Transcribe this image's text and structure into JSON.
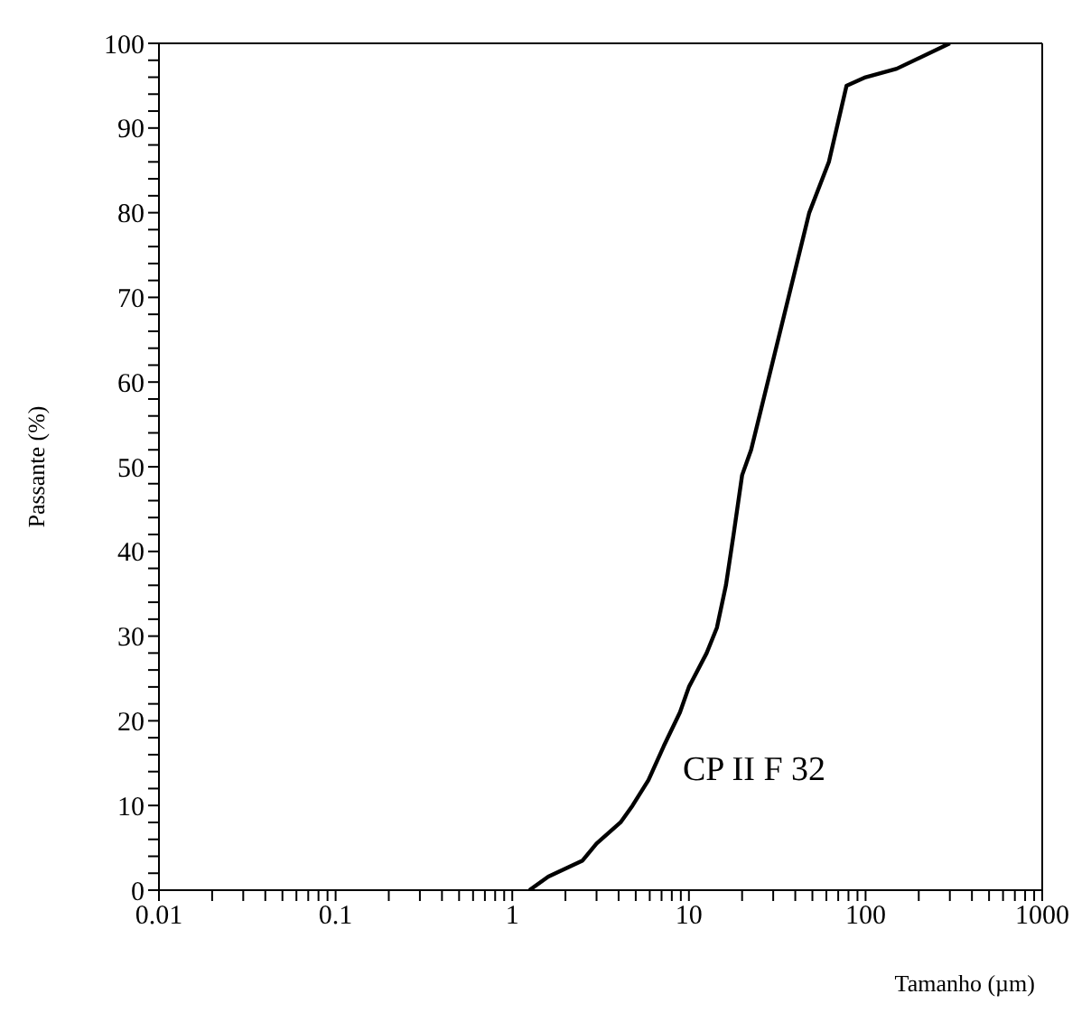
{
  "chart_data": {
    "type": "line",
    "xlabel": "Tamanho (µm)",
    "ylabel": "Passante (%)",
    "annotations": [
      "CP II F 32"
    ],
    "log": "x",
    "marker": "none",
    "line_style": "solid",
    "xlim": [
      0.01,
      1000
    ],
    "ylim": [
      0,
      100
    ],
    "xticks": [
      0.01,
      {
        "value": 0.02,
        "label": null
      },
      {
        "value": 0.03,
        "label": null
      },
      {
        "value": 0.04,
        "label": null
      },
      {
        "value": 0.05,
        "label": null
      },
      {
        "value": 0.06,
        "label": null
      },
      {
        "value": 0.07,
        "label": null
      },
      {
        "value": 0.08,
        "label": null
      },
      {
        "value": 0.09,
        "label": null
      },
      0.1,
      {
        "value": 0.2,
        "label": null
      },
      {
        "value": 0.3,
        "label": null
      },
      {
        "value": 0.4,
        "label": null
      },
      {
        "value": 0.5,
        "label": null
      },
      {
        "value": 0.6,
        "label": null
      },
      {
        "value": 0.7,
        "label": null
      },
      {
        "value": 0.8,
        "label": null
      },
      {
        "value": 0.9,
        "label": null
      },
      1,
      {
        "value": 2,
        "label": null
      },
      {
        "value": 3,
        "label": null
      },
      {
        "value": 4,
        "label": null
      },
      {
        "value": 5,
        "label": null
      },
      {
        "value": 6,
        "label": null
      },
      {
        "value": 7,
        "label": null
      },
      {
        "value": 8,
        "label": null
      },
      {
        "value": 9,
        "label": null
      },
      10,
      {
        "value": 20,
        "label": null
      },
      {
        "value": 30,
        "label": null
      },
      {
        "value": 40,
        "label": null
      },
      {
        "value": 50,
        "label": null
      },
      {
        "value": 60,
        "label": null
      },
      {
        "value": 70,
        "label": null
      },
      {
        "value": 80,
        "label": null
      },
      {
        "value": 90,
        "label": null
      },
      100,
      {
        "value": 200,
        "label": null
      },
      {
        "value": 300,
        "label": null
      },
      {
        "value": 400,
        "label": null
      },
      {
        "value": 500,
        "label": null
      },
      {
        "value": 600,
        "label": null
      },
      {
        "value": 700,
        "label": null
      },
      {
        "value": 800,
        "label": null
      },
      {
        "value": 900,
        "label": null
      },
      1000
    ],
    "yticks": [
      0,
      {
        "value": 2,
        "label": null
      },
      {
        "value": 4,
        "label": null
      },
      {
        "value": 6,
        "label": null
      },
      {
        "value": 8,
        "label": null
      },
      10,
      {
        "value": 12,
        "label": null
      },
      {
        "value": 14,
        "label": null
      },
      {
        "value": 16,
        "label": null
      },
      {
        "value": 18,
        "label": null
      },
      20,
      {
        "value": 22,
        "label": null
      },
      {
        "value": 24,
        "label": null
      },
      {
        "value": 26,
        "label": null
      },
      {
        "value": 28,
        "label": null
      },
      30,
      {
        "value": 32,
        "label": null
      },
      {
        "value": 34,
        "label": null
      },
      {
        "value": 36,
        "label": null
      },
      {
        "value": 38,
        "label": null
      },
      40,
      {
        "value": 42,
        "label": null
      },
      {
        "value": 44,
        "label": null
      },
      {
        "value": 46,
        "label": null
      },
      {
        "value": 48,
        "label": null
      },
      50,
      {
        "value": 52,
        "label": null
      },
      {
        "value": 54,
        "label": null
      },
      {
        "value": 56,
        "label": null
      },
      {
        "value": 58,
        "label": null
      },
      60,
      {
        "value": 62,
        "label": null
      },
      {
        "value": 64,
        "label": null
      },
      {
        "value": 66,
        "label": null
      },
      {
        "value": 68,
        "label": null
      },
      70,
      {
        "value": 72,
        "label": null
      },
      {
        "value": 74,
        "label": null
      },
      {
        "value": 76,
        "label": null
      },
      {
        "value": 78,
        "label": null
      },
      80,
      {
        "value": 82,
        "label": null
      },
      {
        "value": 84,
        "label": null
      },
      {
        "value": 86,
        "label": null
      },
      {
        "value": 88,
        "label": null
      },
      90,
      {
        "value": 92,
        "label": null
      },
      {
        "value": 94,
        "label": null
      },
      {
        "value": 96,
        "label": null
      },
      {
        "value": 98,
        "label": null
      },
      100
    ],
    "x": [
      1.25,
      1.6,
      2.5,
      3,
      4.1,
      4.8,
      5.9,
      7.2,
      8.9,
      10,
      12.6,
      14.4,
      16.2,
      17.9,
      20,
      22.5,
      48,
      62,
      78,
      100,
      150,
      300
    ],
    "series": [
      {
        "color": "#000000",
        "values": [
          0,
          1.6,
          3.5,
          5.5,
          8,
          10,
          13,
          17,
          21,
          24,
          28,
          31,
          36,
          42,
          49,
          52,
          80,
          86,
          95,
          96,
          97,
          100
        ]
      }
    ]
  }
}
